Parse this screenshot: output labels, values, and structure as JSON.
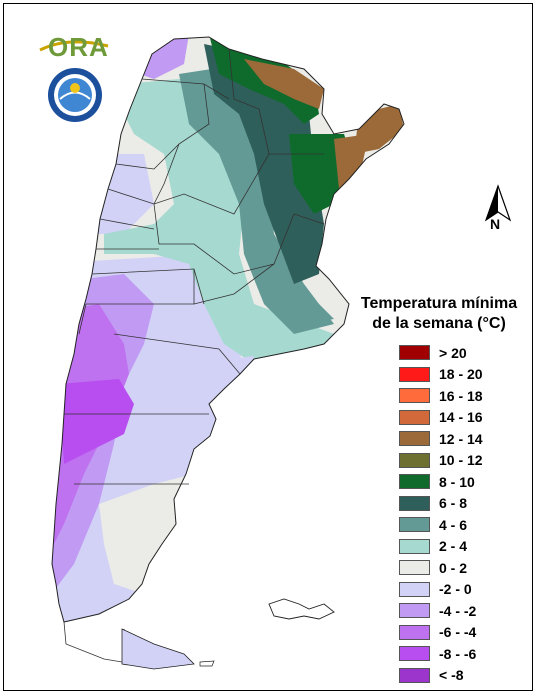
{
  "logo": {
    "text": "ORA"
  },
  "compass": {
    "label": "N"
  },
  "legend": {
    "title_line1": "Temperatura mínima",
    "title_line2": "de la semana (°C)",
    "items": [
      {
        "label": "> 20",
        "color": "#a00000"
      },
      {
        "label": "18 - 20",
        "color": "#ff1a1a"
      },
      {
        "label": "16 - 18",
        "color": "#ff6b3a"
      },
      {
        "label": "14 - 16",
        "color": "#d2693a"
      },
      {
        "label": "12 - 14",
        "color": "#9b6a38"
      },
      {
        "label": "10 - 12",
        "color": "#6e7032"
      },
      {
        "label": "8 - 10",
        "color": "#0e6b2c"
      },
      {
        "label": "6 - 8",
        "color": "#2f5f5a"
      },
      {
        "label": "4 - 6",
        "color": "#639a96"
      },
      {
        "label": "2 - 4",
        "color": "#a6d9d0"
      },
      {
        "label": "0 - 2",
        "color": "#ebebe7"
      },
      {
        "label": "-2 - 0",
        "color": "#d2d2f7"
      },
      {
        "label": "-4 - -2",
        "color": "#c19af3"
      },
      {
        "label": "-6 - -4",
        "color": "#bf72f0"
      },
      {
        "label": "-8 - -6",
        "color": "#b84df0"
      },
      {
        "label": "< -8",
        "color": "#9b35cc"
      }
    ]
  }
}
